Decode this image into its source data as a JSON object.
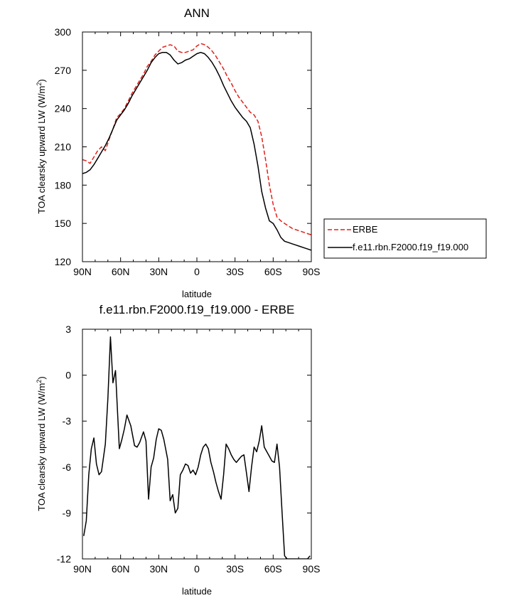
{
  "chart_data": [
    {
      "type": "line",
      "title": "ANN",
      "xlabel": "latitude",
      "ylabel": "TOA clearsky upward LW (W/m",
      "ylabel_sup": "2",
      "ylabel_close": ")",
      "xlim": [
        -90,
        90
      ],
      "ylim": [
        120,
        300
      ],
      "xticks": [
        -90,
        -60,
        -30,
        0,
        30,
        60,
        90
      ],
      "xtick_labels": [
        "90N",
        "60N",
        "30N",
        "0",
        "30S",
        "60S",
        "90S"
      ],
      "yticks": [
        120,
        150,
        180,
        210,
        240,
        270,
        300
      ],
      "ytick_labels": [
        "120",
        "150",
        "180",
        "210",
        "240",
        "270",
        "300"
      ],
      "legend_position": "right",
      "series": [
        {
          "name": "ERBE",
          "color": "#e0211b",
          "style": "dashed",
          "x": [
            -90,
            -87,
            -84,
            -81,
            -78,
            -75,
            -72,
            -69,
            -66,
            -63,
            -60,
            -57,
            -54,
            -51,
            -48,
            -45,
            -42,
            -39,
            -36,
            -33,
            -30,
            -27,
            -24,
            -21,
            -18,
            -15,
            -12,
            -9,
            -6,
            -3,
            0,
            3,
            6,
            9,
            12,
            15,
            18,
            21,
            24,
            27,
            30,
            33,
            36,
            39,
            42,
            45,
            48,
            51,
            54,
            57,
            60,
            63,
            66,
            69,
            72,
            75,
            78,
            81,
            84,
            87,
            90
          ],
          "y": [
            200,
            199,
            197,
            202,
            207,
            210,
            207,
            216,
            224,
            233,
            236,
            240,
            246,
            252,
            257,
            262,
            267,
            273,
            277,
            282,
            285,
            288,
            289,
            290,
            289,
            285,
            284,
            284,
            285,
            286,
            289,
            291,
            290,
            288,
            285,
            281,
            276,
            271,
            265,
            260,
            254,
            249,
            245,
            241,
            237,
            235,
            230,
            218,
            200,
            180,
            165,
            155,
            152,
            150,
            148,
            146,
            145,
            144,
            143,
            142,
            141
          ]
        },
        {
          "name": "f.e11.rbn.F2000.f19_f19.000",
          "color": "#000000",
          "style": "solid",
          "x": [
            -90,
            -87,
            -84,
            -81,
            -78,
            -75,
            -72,
            -69,
            -66,
            -63,
            -60,
            -57,
            -54,
            -51,
            -48,
            -45,
            -42,
            -39,
            -36,
            -33,
            -30,
            -27,
            -24,
            -21,
            -18,
            -15,
            -12,
            -9,
            -6,
            -3,
            0,
            3,
            6,
            9,
            12,
            15,
            18,
            21,
            24,
            27,
            30,
            33,
            36,
            39,
            42,
            45,
            48,
            51,
            54,
            57,
            60,
            63,
            66,
            69,
            72,
            75,
            78,
            81,
            84,
            87,
            90
          ],
          "y": [
            189,
            190,
            192,
            196,
            201,
            206,
            211,
            217,
            224,
            231,
            235,
            239,
            244,
            250,
            255,
            260,
            265,
            270,
            276,
            280,
            283,
            284,
            284,
            282,
            278,
            275,
            276,
            278,
            279,
            281,
            283,
            284,
            283,
            280,
            276,
            271,
            265,
            258,
            252,
            246,
            241,
            237,
            233,
            230,
            225,
            212,
            195,
            175,
            162,
            152,
            150,
            145,
            139,
            136,
            135,
            134,
            133,
            132,
            131,
            130,
            129
          ]
        }
      ]
    },
    {
      "type": "line",
      "title": "f.e11.rbn.F2000.f19_f19.000 - ERBE",
      "xlabel": "latitude",
      "ylabel": "TOA clearsky upward LW (W/m",
      "ylabel_sup": "2",
      "ylabel_close": ")",
      "xlim": [
        -90,
        90
      ],
      "ylim": [
        -12,
        3
      ],
      "xticks": [
        -90,
        -60,
        -30,
        0,
        30,
        60,
        90
      ],
      "xtick_labels": [
        "90N",
        "60N",
        "30N",
        "0",
        "30S",
        "60S",
        "90S"
      ],
      "yticks": [
        -12,
        -9,
        -6,
        -3,
        0,
        3
      ],
      "ytick_labels": [
        "-12",
        "-9",
        "-6",
        "-3",
        "0",
        "3"
      ],
      "series": [
        {
          "name": "f.e11.rbn.F2000.f19_f19.000 - ERBE",
          "color": "#000000",
          "style": "solid",
          "x": [
            -89,
            -87,
            -85,
            -83,
            -81,
            -79,
            -77,
            -75,
            -72,
            -70,
            -68,
            -66,
            -64,
            -61,
            -59,
            -57,
            -55,
            -52,
            -49,
            -47,
            -45,
            -42,
            -40,
            -38,
            -36,
            -34,
            -32,
            -30,
            -28,
            -26,
            -23,
            -21,
            -19,
            -17,
            -15,
            -13,
            -11,
            -9,
            -7,
            -5,
            -3,
            -1,
            1,
            3,
            5,
            7,
            9,
            11,
            13,
            15,
            17,
            19,
            21,
            23,
            25,
            27,
            29,
            31,
            33,
            35,
            37,
            39,
            41,
            43,
            45,
            47,
            49,
            51,
            53,
            55,
            57,
            59,
            61,
            63,
            65,
            67,
            69,
            71,
            73,
            75,
            77,
            79,
            81,
            83,
            85,
            87,
            89
          ],
          "y": [
            -10.5,
            -9.5,
            -6.5,
            -4.8,
            -4.1,
            -5.8,
            -6.5,
            -6.3,
            -4.5,
            -1.5,
            2.5,
            -0.5,
            0.3,
            -4.8,
            -4.2,
            -3.5,
            -2.6,
            -3.3,
            -4.6,
            -4.7,
            -4.4,
            -3.7,
            -4.3,
            -8.1,
            -6.0,
            -5.4,
            -4.2,
            -3.5,
            -3.6,
            -4.2,
            -5.5,
            -8.2,
            -7.8,
            -9.0,
            -8.7,
            -6.5,
            -6.2,
            -5.8,
            -5.9,
            -6.4,
            -6.2,
            -6.5,
            -6.0,
            -5.2,
            -4.7,
            -4.5,
            -4.8,
            -5.7,
            -6.3,
            -7.0,
            -7.6,
            -8.1,
            -6.5,
            -4.5,
            -4.8,
            -5.2,
            -5.5,
            -5.7,
            -5.5,
            -5.3,
            -5.2,
            -6.4,
            -7.6,
            -6.0,
            -4.7,
            -5.0,
            -4.3,
            -3.3,
            -4.7,
            -5.0,
            -5.3,
            -5.6,
            -5.7,
            -4.5,
            -6.0,
            -9.0,
            -11.8,
            -12.0,
            -12.0,
            -12.0,
            -12.0,
            -12.0,
            -12.0,
            -12.0,
            -12.0,
            -12.0,
            -11.8
          ]
        }
      ]
    }
  ]
}
